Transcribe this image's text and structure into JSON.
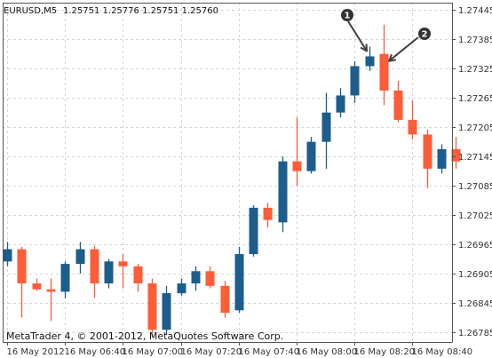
{
  "header": {
    "symbol_label": "EURUSD,M5",
    "ohlc_readout": "1.25751 1.25776 1.25751 1.25760"
  },
  "footer": {
    "copyright": "MetaTrader 4, © 2001-2012, MetaQuotes Software Corp."
  },
  "colors": {
    "bull": "#1c5d8c",
    "bear": "#ff5c38",
    "grid": "#d7d7d7",
    "axis": "#555555",
    "annotation": "#404040"
  },
  "chart_data": {
    "type": "candlestick",
    "ylim": [
      1.26765,
      1.2746
    ],
    "y_ticks": [
      "1.27445",
      "1.27385",
      "1.27325",
      "1.27265",
      "1.27205",
      "1.27145",
      "1.27085",
      "1.27025",
      "1.26965",
      "1.26905",
      "1.26845",
      "1.26785"
    ],
    "x_ticks": [
      {
        "index": 0,
        "label": "16 May 2012"
      },
      {
        "index": 4,
        "label": "16 May 06:40"
      },
      {
        "index": 8,
        "label": "16 May 07:00"
      },
      {
        "index": 12,
        "label": "16 May 07:20"
      },
      {
        "index": 16,
        "label": "16 May 07:40"
      },
      {
        "index": 20,
        "label": "16 May 08:00"
      },
      {
        "index": 24,
        "label": "16 May 08:20"
      },
      {
        "index": 28,
        "label": "16 May 08:40"
      }
    ],
    "candles": [
      {
        "o": 1.2693,
        "h": 1.2697,
        "l": 1.2692,
        "c": 1.26955
      },
      {
        "o": 1.26955,
        "h": 1.2696,
        "l": 1.26815,
        "c": 1.26885
      },
      {
        "o": 1.26885,
        "h": 1.26895,
        "l": 1.2687,
        "c": 1.26873
      },
      {
        "o": 1.26873,
        "h": 1.26895,
        "l": 1.26808,
        "c": 1.26868
      },
      {
        "o": 1.26868,
        "h": 1.2693,
        "l": 1.26855,
        "c": 1.26925
      },
      {
        "o": 1.26925,
        "h": 1.2697,
        "l": 1.26905,
        "c": 1.26955
      },
      {
        "o": 1.26955,
        "h": 1.26962,
        "l": 1.26855,
        "c": 1.26885
      },
      {
        "o": 1.26885,
        "h": 1.26935,
        "l": 1.26875,
        "c": 1.2693
      },
      {
        "o": 1.2693,
        "h": 1.26945,
        "l": 1.26875,
        "c": 1.2692
      },
      {
        "o": 1.2692,
        "h": 1.26925,
        "l": 1.26868,
        "c": 1.26885
      },
      {
        "o": 1.26885,
        "h": 1.26895,
        "l": 1.26775,
        "c": 1.2679
      },
      {
        "o": 1.2679,
        "h": 1.2688,
        "l": 1.2678,
        "c": 1.26865
      },
      {
        "o": 1.26865,
        "h": 1.26895,
        "l": 1.2686,
        "c": 1.26885
      },
      {
        "o": 1.26885,
        "h": 1.2692,
        "l": 1.2687,
        "c": 1.2691
      },
      {
        "o": 1.2691,
        "h": 1.2692,
        "l": 1.26875,
        "c": 1.2688
      },
      {
        "o": 1.2688,
        "h": 1.2689,
        "l": 1.26815,
        "c": 1.26825
      },
      {
        "o": 1.2683,
        "h": 1.2696,
        "l": 1.26825,
        "c": 1.26945
      },
      {
        "o": 1.26945,
        "h": 1.27045,
        "l": 1.2694,
        "c": 1.2704
      },
      {
        "o": 1.2704,
        "h": 1.2705,
        "l": 1.27,
        "c": 1.27015
      },
      {
        "o": 1.2701,
        "h": 1.27145,
        "l": 1.2699,
        "c": 1.27135
      },
      {
        "o": 1.27135,
        "h": 1.27225,
        "l": 1.27085,
        "c": 1.27115
      },
      {
        "o": 1.27115,
        "h": 1.27185,
        "l": 1.2711,
        "c": 1.27175
      },
      {
        "o": 1.27175,
        "h": 1.27275,
        "l": 1.2712,
        "c": 1.27235
      },
      {
        "o": 1.27235,
        "h": 1.27285,
        "l": 1.27225,
        "c": 1.2727
      },
      {
        "o": 1.2727,
        "h": 1.2734,
        "l": 1.27255,
        "c": 1.2733
      },
      {
        "o": 1.2733,
        "h": 1.2737,
        "l": 1.2732,
        "c": 1.2735
      },
      {
        "o": 1.27355,
        "h": 1.27415,
        "l": 1.2725,
        "c": 1.2728
      },
      {
        "o": 1.2728,
        "h": 1.273,
        "l": 1.27215,
        "c": 1.2722
      },
      {
        "o": 1.2722,
        "h": 1.2726,
        "l": 1.2718,
        "c": 1.2719
      },
      {
        "o": 1.2719,
        "h": 1.272,
        "l": 1.2708,
        "c": 1.2712
      },
      {
        "o": 1.2712,
        "h": 1.2717,
        "l": 1.2711,
        "c": 1.2716
      },
      {
        "o": 1.2716,
        "h": 1.27185,
        "l": 1.2712,
        "c": 1.27135
      }
    ],
    "annotations": [
      {
        "label": "1",
        "candle_index": 25
      },
      {
        "label": "2",
        "candle_index": 26
      }
    ]
  }
}
